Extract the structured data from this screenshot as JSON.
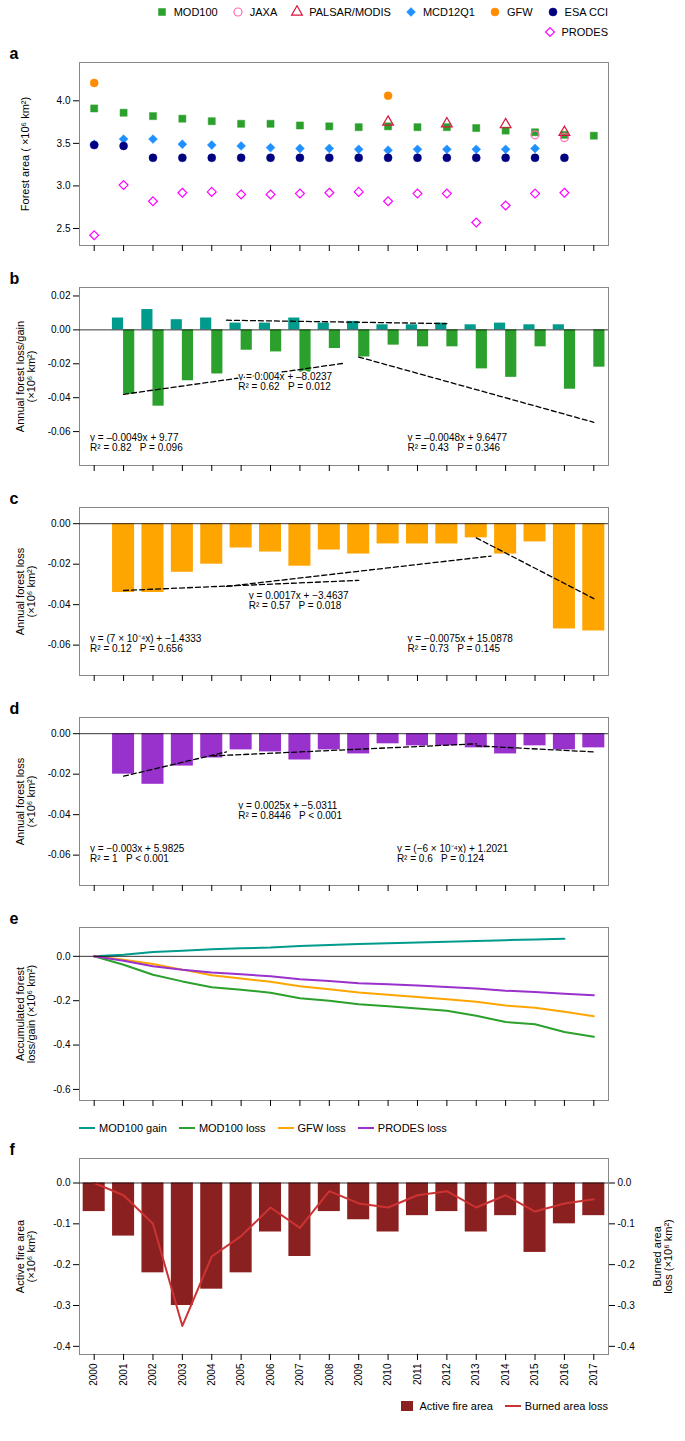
{
  "chart_data": [
    {
      "type": "scatter",
      "title": "a",
      "ylabel": "Forest area ( ×10⁶ km²)",
      "x": [
        2000,
        2001,
        2002,
        2003,
        2004,
        2005,
        2006,
        2007,
        2008,
        2009,
        2010,
        2011,
        2012,
        2013,
        2014,
        2015,
        2016,
        2017
      ],
      "xlim": [
        1999.5,
        2017.5
      ],
      "xticks": [
        2000,
        2001,
        2002,
        2003,
        2004,
        2005,
        2006,
        2007,
        2008,
        2009,
        2010,
        2011,
        2012,
        2013,
        2014,
        2015,
        2016,
        2017
      ],
      "ylim": [
        2.3,
        4.45
      ],
      "yticks": [
        2.5,
        {
          "value": 3,
          "label": "3.0"
        },
        3.5,
        {
          "value": 4,
          "label": "4.0"
        }
      ],
      "tick_labels": "y",
      "grid": false,
      "legend": "upper right",
      "series": [
        {
          "name": "MOD100",
          "color": "#2ca02c",
          "marker": "square",
          "values": [
            3.91,
            3.86,
            3.82,
            3.79,
            3.76,
            3.73,
            3.73,
            3.71,
            3.7,
            3.69,
            3.7,
            3.69,
            3.69,
            3.68,
            3.65,
            3.63,
            3.6,
            3.59
          ]
        },
        {
          "name": "JAXA",
          "color": "hotpink",
          "marker": "circle-open",
          "values": [
            null,
            null,
            null,
            null,
            null,
            null,
            null,
            null,
            null,
            null,
            null,
            null,
            null,
            null,
            null,
            3.6,
            3.57,
            null
          ]
        },
        {
          "name": "PALSAR/MODIS",
          "color": "crimson",
          "marker": "triangle-open",
          "values": [
            null,
            null,
            null,
            null,
            null,
            null,
            null,
            null,
            null,
            null,
            3.75,
            null,
            3.73,
            null,
            3.72,
            null,
            3.63,
            null
          ]
        },
        {
          "name": "MCD12Q1",
          "color": "dodgerblue",
          "marker": "diamond",
          "values": [
            3.49,
            3.55,
            3.55,
            3.49,
            3.48,
            3.47,
            3.45,
            3.44,
            3.44,
            3.43,
            3.42,
            3.43,
            3.43,
            3.43,
            3.43,
            3.44,
            null,
            null
          ]
        },
        {
          "name": "GFW",
          "color": "darkorange",
          "marker": "circle",
          "values": [
            4.21,
            null,
            null,
            null,
            null,
            null,
            null,
            null,
            null,
            null,
            4.06,
            null,
            null,
            null,
            null,
            null,
            null,
            null
          ]
        },
        {
          "name": "ESA CCI",
          "color": "navy",
          "marker": "circle",
          "values": [
            3.48,
            3.47,
            3.33,
            3.33,
            3.33,
            3.33,
            3.33,
            3.33,
            3.33,
            3.33,
            3.33,
            3.33,
            3.33,
            3.33,
            3.33,
            3.33,
            3.33,
            null
          ]
        },
        {
          "name": "PRODES",
          "color": "magenta",
          "marker": "diamond-open",
          "values": [
            2.42,
            3.01,
            2.82,
            2.92,
            2.93,
            2.9,
            2.9,
            2.91,
            2.92,
            2.93,
            2.82,
            2.91,
            2.91,
            2.57,
            2.77,
            2.91,
            2.92,
            null
          ]
        }
      ]
    },
    {
      "type": "bar",
      "title": "b",
      "ylabel": "Annual forest loss/gain\n(×10⁶ km²)",
      "x": [
        2001,
        2002,
        2003,
        2004,
        2005,
        2006,
        2007,
        2008,
        2009,
        2010,
        2011,
        2012,
        2013,
        2014,
        2015,
        2016,
        2017
      ],
      "xlim": [
        1999.5,
        2017.5
      ],
      "xticks": [
        2000,
        2001,
        2002,
        2003,
        2004,
        2005,
        2006,
        2007,
        2008,
        2009,
        2010,
        2011,
        2012,
        2013,
        2014,
        2015,
        2016,
        2017
      ],
      "ylim": [
        -0.08,
        0.025
      ],
      "yticks": [
        -0.06,
        -0.04,
        -0.02,
        {
          "value": 0,
          "label": "0.00"
        },
        0.02
      ],
      "tick_labels": "y",
      "grid": false,
      "hline": 0,
      "series": [
        {
          "color": "#009B8D",
          "values": [
            0.007,
            0.012,
            0.006,
            0.007,
            0.004,
            0.004,
            0.007,
            0.004,
            0.005,
            0.003,
            0.003,
            0.004,
            0.003,
            0.004,
            0.003,
            0.003,
            null
          ]
        },
        {
          "color": "#2ca02c",
          "values": [
            -0.038,
            -0.045,
            -0.03,
            -0.026,
            -0.012,
            -0.013,
            -0.025,
            -0.011,
            -0.016,
            -0.009,
            -0.01,
            -0.01,
            -0.023,
            -0.028,
            -0.01,
            -0.035,
            -0.022
          ]
        },
        {
          "type": "line",
          "line_style": "dashed",
          "color": "black",
          "x": [
            2001,
            2008.5
          ],
          "values": [
            -0.038,
            -0.0197
          ]
        },
        {
          "type": "line",
          "line_style": "dashed",
          "color": "black",
          "x": [
            2009,
            2017
          ],
          "values": [
            -0.016,
            -0.0545
          ]
        },
        {
          "type": "line",
          "line_style": "dashed",
          "color": "black",
          "x": [
            2004.5,
            2012.0
          ],
          "values": [
            0.0057,
            0.0037
          ]
        }
      ],
      "annotations": [
        "y = –0.0049x + 9.77\nR² = 0.82   P = 0.096",
        "y = –0.0048x + 9.6477\nR² = 0.43   P = 0.346",
        "y = 0.004x + –8.0237\nR² = 0.62   P = 0.012"
      ]
    },
    {
      "type": "bar",
      "title": "c",
      "ylabel": "Annual forest loss\n(×10⁶ km²)",
      "x": [
        2001,
        2002,
        2003,
        2004,
        2005,
        2006,
        2007,
        2008,
        2009,
        2010,
        2011,
        2012,
        2013,
        2014,
        2015,
        2016,
        2017
      ],
      "xlim": [
        1999.5,
        2017.5
      ],
      "xticks": [
        2000,
        2001,
        2002,
        2003,
        2004,
        2005,
        2006,
        2007,
        2008,
        2009,
        2010,
        2011,
        2012,
        2013,
        2014,
        2015,
        2016,
        2017
      ],
      "ylim": [
        -0.075,
        0.008
      ],
      "yticks": [
        -0.06,
        -0.04,
        -0.02,
        {
          "value": 0,
          "label": "0.00"
        }
      ],
      "tick_labels": "y",
      "grid": false,
      "hline": 0,
      "series": [
        {
          "color": "#FFA500",
          "values": [
            -0.034,
            -0.034,
            -0.024,
            -0.02,
            -0.012,
            -0.014,
            -0.021,
            -0.013,
            -0.015,
            -0.01,
            -0.01,
            -0.01,
            -0.007,
            -0.015,
            -0.009,
            -0.052,
            -0.053
          ]
        },
        {
          "type": "line",
          "line_style": "dashed",
          "color": "black",
          "x": [
            2001.0,
            2009.0
          ],
          "values": [
            -0.033,
            -0.028
          ]
        },
        {
          "type": "line",
          "line_style": "dashed",
          "color": "black",
          "x": [
            2004.5,
            2013.5
          ],
          "values": [
            -0.031,
            -0.016
          ]
        },
        {
          "type": "line",
          "line_style": "dashed",
          "color": "black",
          "x": [
            2013.0,
            2017.0
          ],
          "values": [
            -0.007,
            -0.037
          ]
        }
      ],
      "annotations": [
        "y = (7 × 10⁻⁴x) + −1.4333\nR² = 0.12   P = 0.656",
        "y = 0.0017x + −3.4637\nR² = 0.57   P = 0.018",
        "y = −0.0075x + 15.0878\nR² = 0.73   P = 0.145"
      ]
    },
    {
      "type": "bar",
      "title": "d",
      "ylabel": "Annual forest loss\n(×10⁶ km²)",
      "x": [
        2001,
        2002,
        2003,
        2004,
        2005,
        2006,
        2007,
        2008,
        2009,
        2010,
        2011,
        2012,
        2013,
        2014,
        2015,
        2016,
        2017
      ],
      "xlim": [
        1999.5,
        2017.5
      ],
      "xticks": [
        2000,
        2001,
        2002,
        2003,
        2004,
        2005,
        2006,
        2007,
        2008,
        2009,
        2010,
        2011,
        2012,
        2013,
        2014,
        2015,
        2016,
        2017
      ],
      "ylim": [
        -0.075,
        0.008
      ],
      "yticks": [
        -0.06,
        -0.04,
        -0.02,
        {
          "value": 0,
          "label": "0.00"
        }
      ],
      "tick_labels": "y",
      "grid": false,
      "hline": 0,
      "series": [
        {
          "color": "#9932CC",
          "values": [
            -0.02,
            -0.025,
            -0.016,
            -0.012,
            -0.008,
            -0.009,
            -0.013,
            -0.008,
            -0.01,
            -0.005,
            -0.006,
            -0.006,
            -0.007,
            -0.01,
            -0.006,
            -0.008,
            -0.007
          ]
        },
        {
          "type": "line",
          "line_style": "dashed",
          "color": "black",
          "x": [
            2001.0,
            2004.5
          ],
          "values": [
            -0.021,
            -0.009
          ]
        },
        {
          "type": "line",
          "line_style": "dashed",
          "color": "black",
          "x": [
            2004.0,
            2013.0
          ],
          "values": [
            -0.011,
            -0.005
          ]
        },
        {
          "type": "line",
          "line_style": "dashed",
          "color": "black",
          "x": [
            2013.0,
            2017.0
          ],
          "values": [
            -0.006,
            -0.009
          ]
        }
      ],
      "annotations": [
        "y = −0.003x + 5.9825\nR² = 1   P < 0.001",
        "y = 0.0025x + −5.0311\nR² = 0.8446   P < 0.001",
        "y = (−6 × 10⁻⁴x) + 1.2021\nR² = 0.6   P = 0.124"
      ]
    },
    {
      "type": "line",
      "title": "e",
      "ylabel": "Accumulated forest\nloss/gain (×10⁶ km²)",
      "x": [
        2000,
        2001,
        2002,
        2003,
        2004,
        2005,
        2006,
        2007,
        2008,
        2009,
        2010,
        2011,
        2012,
        2013,
        2014,
        2015,
        2016,
        2017
      ],
      "xlim": [
        1999.5,
        2017.5
      ],
      "xticks": [
        2000,
        2001,
        2002,
        2003,
        2004,
        2005,
        2006,
        2007,
        2008,
        2009,
        2010,
        2011,
        2012,
        2013,
        2014,
        2015,
        2016,
        2017
      ],
      "ylim": [
        -0.65,
        0.13
      ],
      "yticks": [
        -0.6,
        -0.4,
        -0.2,
        {
          "value": 0,
          "label": "0.0"
        }
      ],
      "tick_labels": "y",
      "grid": false,
      "hline": 0,
      "legend": "lower left",
      "series": [
        {
          "name": "MOD100 gain",
          "color": "#009B8D",
          "values": [
            0.0,
            0.007,
            0.019,
            0.025,
            0.032,
            0.036,
            0.04,
            0.047,
            0.051,
            0.056,
            0.059,
            0.062,
            0.066,
            0.069,
            0.073,
            0.076,
            0.079,
            null
          ]
        },
        {
          "name": "MOD100 loss",
          "color": "#2ca02c",
          "values": [
            0.0,
            -0.038,
            -0.083,
            -0.113,
            -0.139,
            -0.151,
            -0.164,
            -0.189,
            -0.2,
            -0.216,
            -0.225,
            -0.235,
            -0.245,
            -0.268,
            -0.296,
            -0.306,
            -0.341,
            -0.363
          ]
        },
        {
          "name": "GFW loss",
          "color": "#FFA500",
          "values": [
            0.0,
            -0.015,
            -0.035,
            -0.06,
            -0.085,
            -0.1,
            -0.115,
            -0.135,
            -0.148,
            -0.163,
            -0.173,
            -0.183,
            -0.193,
            -0.205,
            -0.222,
            -0.232,
            -0.25,
            -0.27
          ]
        },
        {
          "name": "PRODES loss",
          "color": "#9932CC",
          "values": [
            0.0,
            -0.02,
            -0.045,
            -0.061,
            -0.073,
            -0.081,
            -0.09,
            -0.103,
            -0.111,
            -0.121,
            -0.126,
            -0.132,
            -0.138,
            -0.145,
            -0.155,
            -0.161,
            -0.169,
            -0.176
          ]
        }
      ]
    },
    {
      "type": "bar",
      "title": "f",
      "ylabel": "Active fire area\n(×10⁶ km²)",
      "y2label": "Burned area\nloss (×10⁶ km²)",
      "x": [
        2000,
        2001,
        2002,
        2003,
        2004,
        2005,
        2006,
        2007,
        2008,
        2009,
        2010,
        2011,
        2012,
        2013,
        2014,
        2015,
        2016,
        2017
      ],
      "xlim": [
        1999.5,
        2017.5
      ],
      "xticks": [
        2000,
        2001,
        2002,
        2003,
        2004,
        2005,
        2006,
        2007,
        2008,
        2009,
        2010,
        2011,
        2012,
        2013,
        2014,
        2015,
        2016,
        2017
      ],
      "ylim": [
        -0.42,
        0.06
      ],
      "yticks": [
        -0.4,
        -0.3,
        -0.2,
        -0.1,
        {
          "value": 0,
          "label": "0.0"
        }
      ],
      "y2lim": [
        -0.42,
        0.06
      ],
      "y2ticks": [
        -0.4,
        -0.3,
        -0.2,
        -0.1,
        {
          "value": 0,
          "label": "0.0"
        }
      ],
      "tick_labels": true,
      "grid": false,
      "hline": 0,
      "legend": "lower right",
      "series": [
        {
          "name": "Active fire area",
          "type": "bar",
          "color": "#8B2020",
          "values": [
            -0.07,
            -0.13,
            -0.22,
            -0.3,
            -0.26,
            -0.22,
            -0.12,
            -0.18,
            -0.07,
            -0.09,
            -0.12,
            -0.08,
            -0.07,
            -0.12,
            -0.08,
            -0.17,
            -0.1,
            -0.08
          ]
        },
        {
          "name": "Burned area loss",
          "type": "line",
          "axis": "y2",
          "color": "#CD3333",
          "values": [
            0.0,
            -0.03,
            -0.1,
            -0.35,
            -0.18,
            -0.13,
            -0.06,
            -0.11,
            -0.02,
            -0.05,
            -0.06,
            -0.03,
            -0.02,
            -0.06,
            -0.03,
            -0.07,
            -0.05,
            -0.04
          ]
        }
      ]
    }
  ]
}
